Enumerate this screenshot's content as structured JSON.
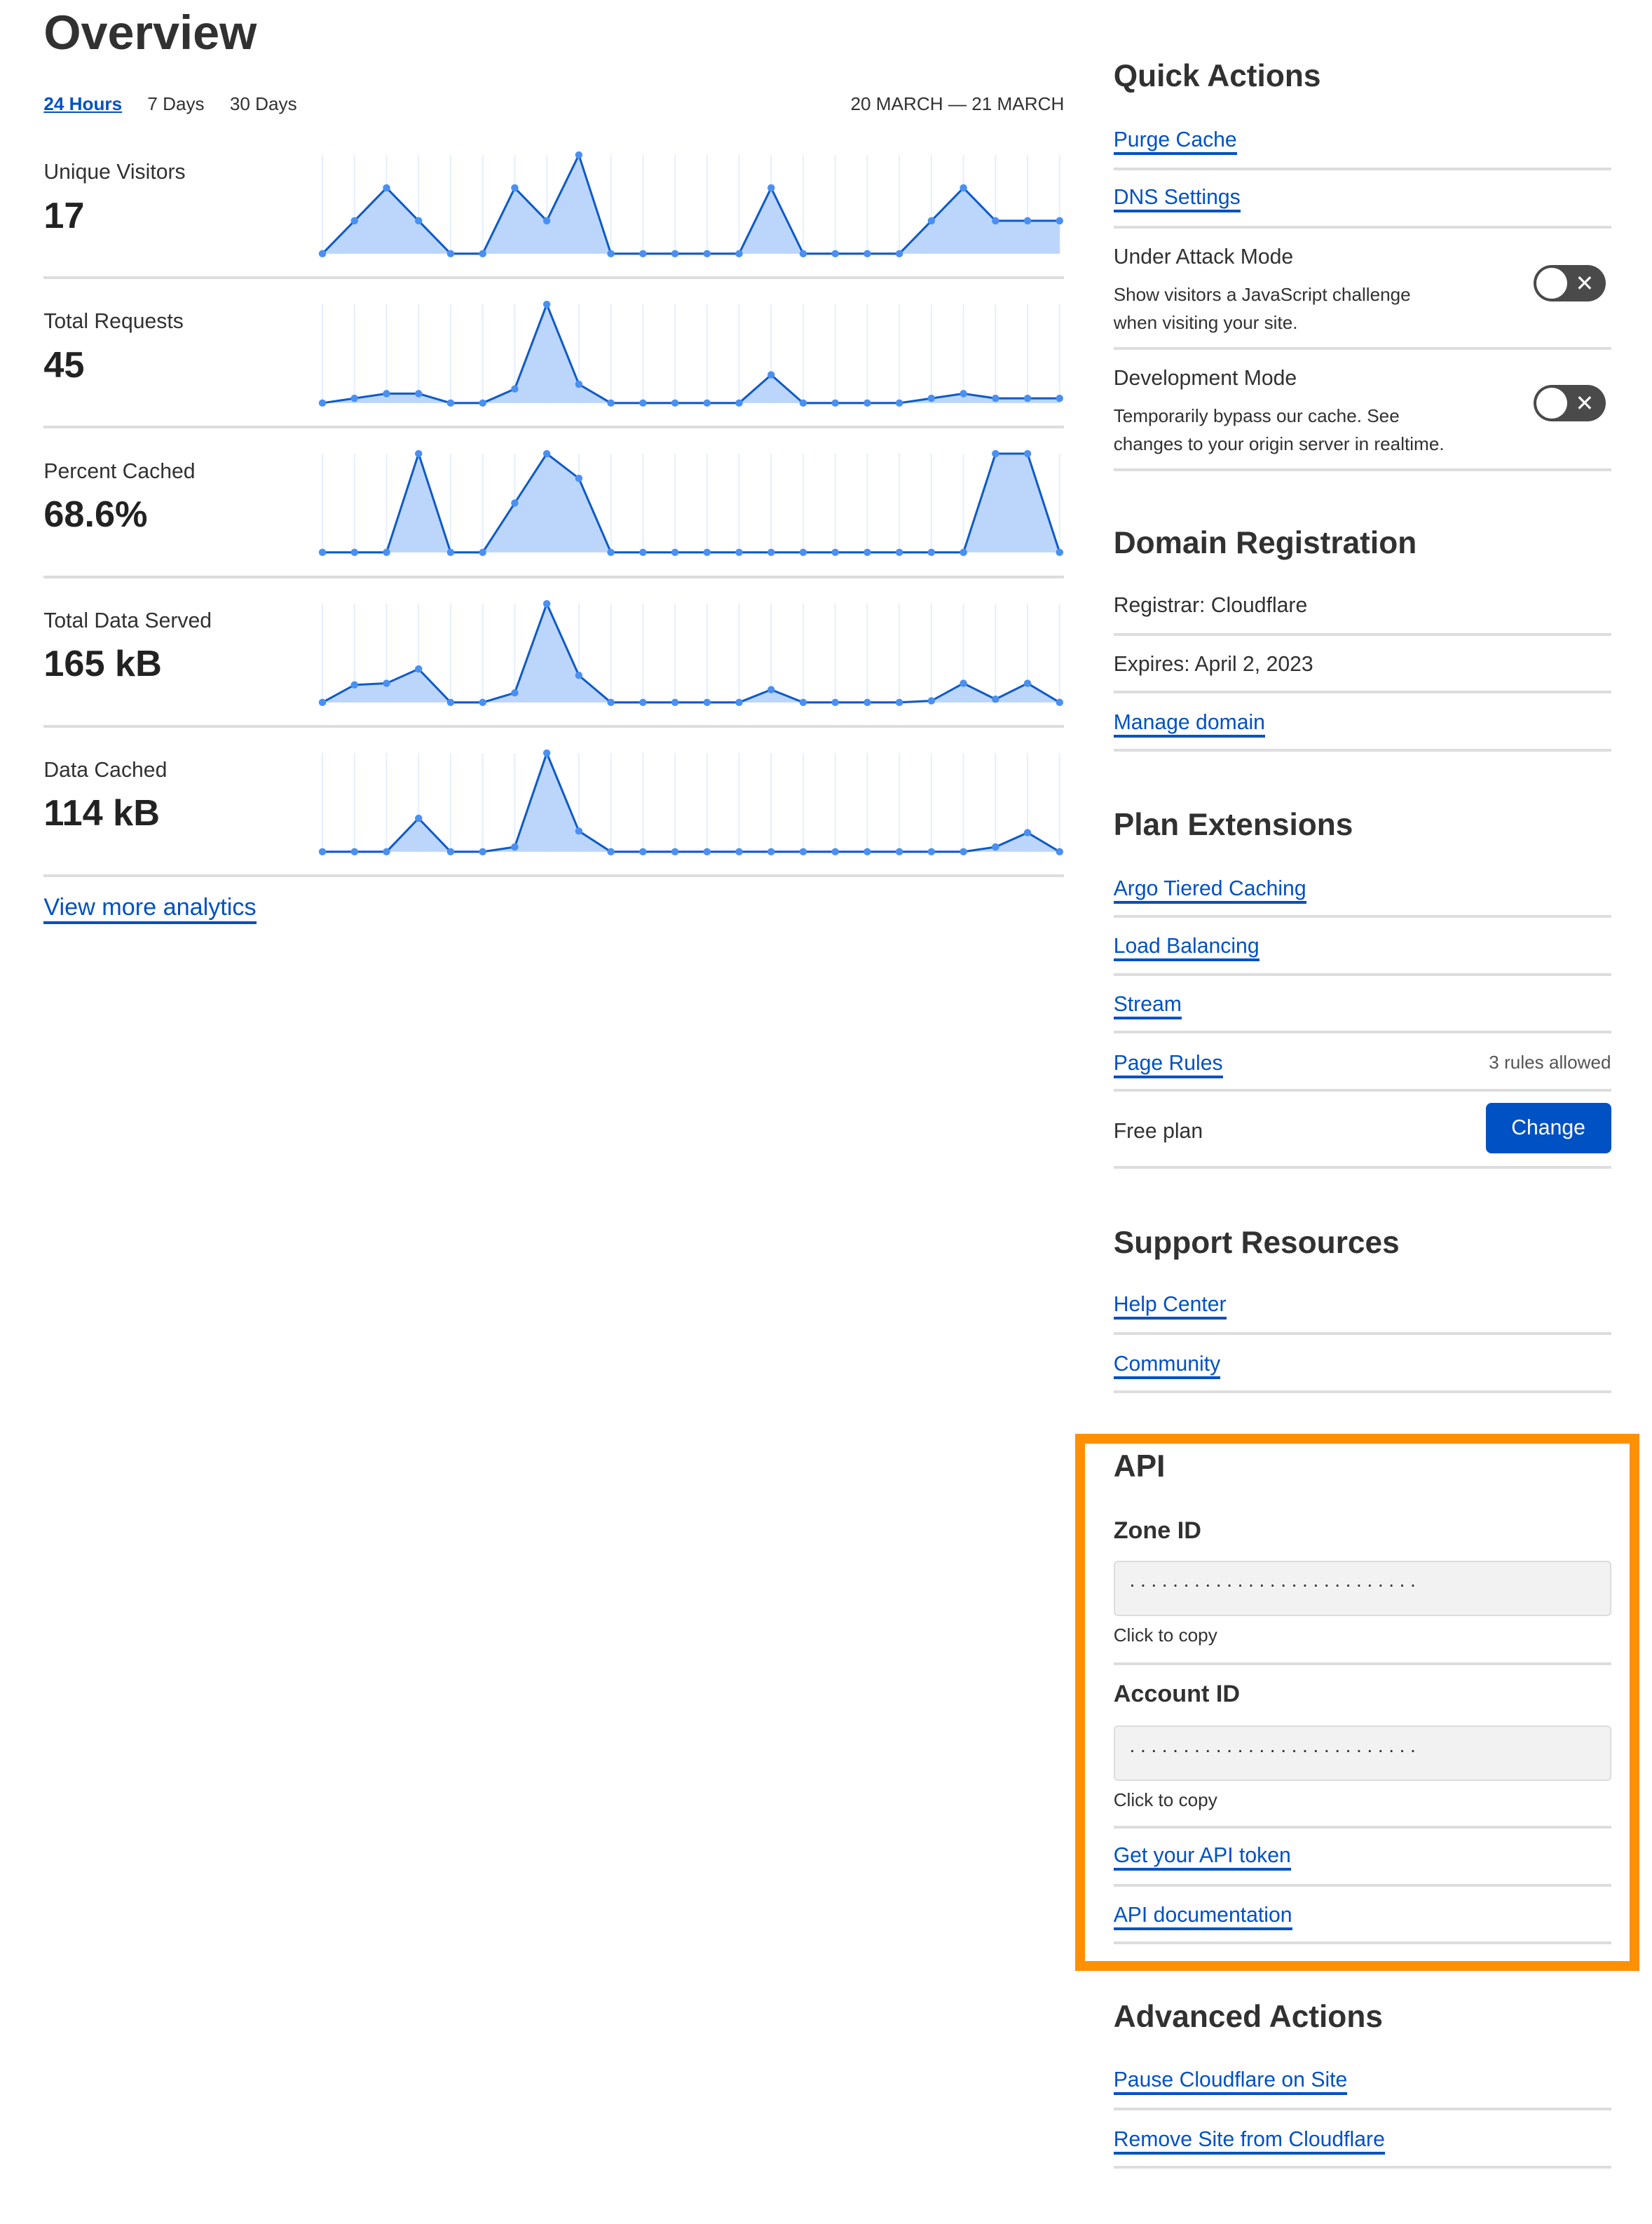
{
  "page": {
    "title": "Overview"
  },
  "tabs": [
    {
      "label": "24 Hours",
      "active": true
    },
    {
      "label": "7 Days"
    },
    {
      "label": "30 Days"
    }
  ],
  "date_range": "20 MARCH — 21 MARCH",
  "colors": {
    "link": "#0051c3",
    "chart_line": "#0e5ac8",
    "chart_fill": "#bcd6fb",
    "chart_point": "#4a90f0",
    "highlight_border": "#ff9000",
    "toggle_off": "#4a4a4a"
  },
  "chart_data": [
    {
      "type": "area",
      "label": "Unique Visitors",
      "value": "17",
      "values": [
        0,
        1,
        2,
        1,
        0,
        0,
        2,
        1,
        3,
        0,
        0,
        0,
        0,
        0,
        2,
        0,
        0,
        0,
        0,
        1,
        2,
        1,
        1,
        1
      ]
    },
    {
      "type": "area",
      "label": "Total Requests",
      "value": "45",
      "values": [
        0,
        1,
        2,
        2,
        0,
        0,
        3,
        21,
        4,
        0,
        0,
        0,
        0,
        0,
        6,
        0,
        0,
        0,
        0,
        1,
        2,
        1,
        1,
        1
      ]
    },
    {
      "type": "area",
      "label": "Percent Cached",
      "value": "68.6%",
      "values": [
        0,
        0,
        0,
        100,
        0,
        0,
        50,
        100,
        75,
        0,
        0,
        0,
        0,
        0,
        0,
        0,
        0,
        0,
        0,
        0,
        0,
        100,
        100,
        0
      ]
    },
    {
      "type": "area",
      "label": "Total Data Served",
      "value": "165 kB",
      "values": [
        0,
        11,
        12,
        21,
        0,
        0,
        6,
        62,
        17,
        0,
        0,
        0,
        0,
        0,
        8,
        0,
        0,
        0,
        0,
        1,
        12,
        2,
        12,
        0
      ]
    },
    {
      "type": "area",
      "label": "Data Cached",
      "value": "114 kB",
      "values": [
        0,
        0,
        0,
        21,
        0,
        0,
        3,
        62,
        13,
        0,
        0,
        0,
        0,
        0,
        0,
        0,
        0,
        0,
        0,
        0,
        0,
        3,
        12,
        0
      ]
    }
  ],
  "view_more": "View more analytics",
  "quick_actions": {
    "title": "Quick Actions",
    "purge_cache": "Purge Cache",
    "dns_settings": "DNS Settings",
    "under_attack": {
      "label": "Under Attack Mode",
      "desc1": "Show visitors a JavaScript challenge",
      "desc2": "when visiting your site.",
      "enabled": false,
      "icon": "x-icon"
    },
    "dev_mode": {
      "label": "Development Mode",
      "desc1": "Temporarily bypass our cache. See",
      "desc2": "changes to your origin server in realtime.",
      "enabled": false,
      "icon": "x-icon"
    },
    "toggle_glyph": "✕"
  },
  "domain_registration": {
    "title": "Domain Registration",
    "registrar": "Registrar: Cloudflare",
    "expires": "Expires: April 2, 2023",
    "manage": "Manage domain"
  },
  "plan_extensions": {
    "title": "Plan Extensions",
    "argo": "Argo Tiered Caching",
    "load_balancing": "Load Balancing",
    "stream": "Stream",
    "page_rules": "Page Rules",
    "page_rules_note": "3 rules allowed",
    "plan": "Free plan",
    "change": "Change"
  },
  "support": {
    "title": "Support Resources",
    "help": "Help Center",
    "community": "Community"
  },
  "api": {
    "title": "API",
    "zone_label": "Zone ID",
    "zone_value": "···························",
    "zone_hint": "Click to copy",
    "account_label": "Account ID",
    "account_value": "···························",
    "account_hint": "Click to copy",
    "token": "Get your API token",
    "docs": "API documentation"
  },
  "advanced": {
    "title": "Advanced Actions",
    "pause": "Pause Cloudflare on Site",
    "remove": "Remove Site from Cloudflare"
  }
}
